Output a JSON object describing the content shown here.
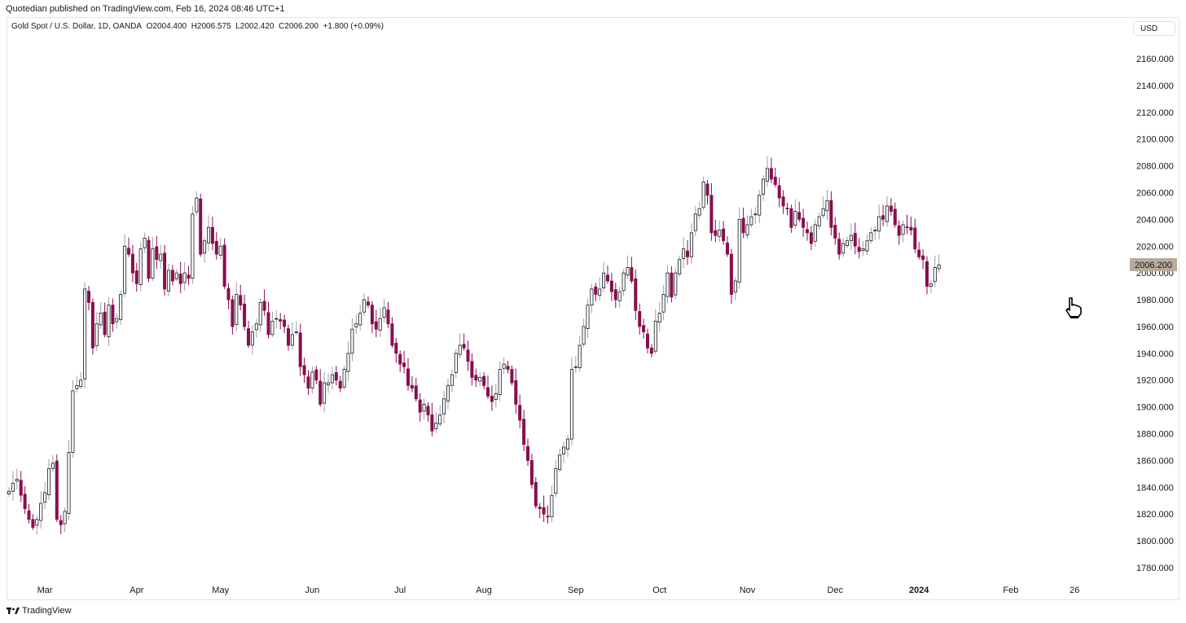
{
  "header": {
    "publisher_text": "Quotedian published on TradingView.com, Feb 16, 2024 08:46 UTC+1"
  },
  "legend": {
    "symbol_text": "Gold Spot / U.S. Dollar, 1D, OANDA",
    "open_label": "O",
    "open": "2004.400",
    "high_label": "H",
    "high": "2006.575",
    "low_label": "L",
    "low": "2002.420",
    "close_label": "C",
    "close": "2006.200",
    "change": "+1.800 (+0.09%)"
  },
  "currency_button": "USD",
  "price_tag": "2006.200",
  "footer": {
    "brand": "TradingView",
    "logo_icon": "tradingview-logo-icon"
  },
  "cursor_icon": "hand-pointer-icon",
  "colors": {
    "up_body": "#ffffff",
    "up_outline": "#131722",
    "down_body": "#880e4f",
    "wick": "#9e9e9e",
    "tag_bg": "#b8ab9a"
  },
  "chart_data": {
    "type": "candlestick",
    "title": "Gold Spot / U.S. Dollar, 1D, OANDA",
    "ylim": [
      1770,
      2170
    ],
    "y_ticks": [
      "2160.000",
      "2140.000",
      "2120.000",
      "2100.000",
      "2080.000",
      "2060.000",
      "2040.000",
      "2020.000",
      "2000.000",
      "1980.000",
      "1960.000",
      "1940.000",
      "1920.000",
      "1900.000",
      "1880.000",
      "1860.000",
      "1840.000",
      "1820.000",
      "1800.000",
      "1780.000"
    ],
    "x_ticks": [
      {
        "label": "Mar",
        "index": 9
      },
      {
        "label": "Apr",
        "index": 32
      },
      {
        "label": "May",
        "index": 53
      },
      {
        "label": "Jun",
        "index": 76
      },
      {
        "label": "Jul",
        "index": 98
      },
      {
        "label": "Aug",
        "index": 119
      },
      {
        "label": "Sep",
        "index": 142
      },
      {
        "label": "Oct",
        "index": 163
      },
      {
        "label": "Nov",
        "index": 185
      },
      {
        "label": "Dec",
        "index": 207
      },
      {
        "label": "2024",
        "index": 228
      },
      {
        "label": "Feb",
        "index": 251
      },
      {
        "label": "26",
        "index": 267
      }
    ],
    "closes": [
      1837,
      1843,
      1846,
      1834,
      1824,
      1816,
      1810,
      1816,
      1828,
      1836,
      1854,
      1858,
      1816,
      1812,
      1822,
      1866,
      1912,
      1916,
      1920,
      1988,
      1978,
      1944,
      1962,
      1970,
      1954,
      1976,
      1962,
      1966,
      1984,
      2020,
      2014,
      2000,
      1992,
      2018,
      2026,
      1996,
      2018,
      2010,
      2014,
      1988,
      2002,
      1994,
      2000,
      1992,
      2000,
      1996,
      2044,
      2056,
      2014,
      2024,
      2034,
      2022,
      2014,
      2020,
      1990,
      1980,
      1960,
      1984,
      1976,
      1960,
      1946,
      1956,
      1962,
      1978,
      1972,
      1954,
      1964,
      1966,
      1964,
      1960,
      1946,
      1954,
      1956,
      1930,
      1924,
      1914,
      1926,
      1920,
      1902,
      1918,
      1918,
      1924,
      1920,
      1914,
      1928,
      1940,
      1958,
      1962,
      1970,
      1980,
      1976,
      1962,
      1958,
      1966,
      1974,
      1962,
      1946,
      1940,
      1932,
      1930,
      1916,
      1914,
      1906,
      1896,
      1902,
      1894,
      1882,
      1888,
      1894,
      1906,
      1916,
      1924,
      1940,
      1946,
      1944,
      1934,
      1922,
      1920,
      1922,
      1916,
      1908,
      1904,
      1910,
      1928,
      1932,
      1928,
      1918,
      1902,
      1890,
      1872,
      1860,
      1842,
      1826,
      1824,
      1820,
      1818,
      1834,
      1854,
      1864,
      1870,
      1876,
      1928,
      1930,
      1946,
      1960,
      1976,
      1988,
      1984,
      1988,
      2000,
      1994,
      1986,
      1980,
      1986,
      2000,
      2004,
      1994,
      1972,
      1960,
      1956,
      1944,
      1940,
      1964,
      1970,
      1984,
      2000,
      1982,
      2000,
      2010,
      2018,
      2012,
      2030,
      2044,
      2048,
      2068,
      2058,
      2030,
      2028,
      2032,
      2024,
      2014,
      1984,
      1994,
      2040,
      2030,
      2036,
      2042,
      2044,
      2058,
      2070,
      2078,
      2070,
      2066,
      2056,
      2050,
      2048,
      2034,
      2046,
      2040,
      2034,
      2030,
      2022,
      2036,
      2042,
      2048,
      2054,
      2034,
      2026,
      2014,
      2022,
      2024,
      2028,
      2020,
      2016,
      2018,
      2024,
      2030,
      2032,
      2042,
      2040,
      2050,
      2046,
      2036,
      2028,
      2036,
      2034,
      2032,
      2018,
      2012,
      2010,
      1990,
      1992,
      2004,
      2006
    ],
    "annotations": []
  }
}
